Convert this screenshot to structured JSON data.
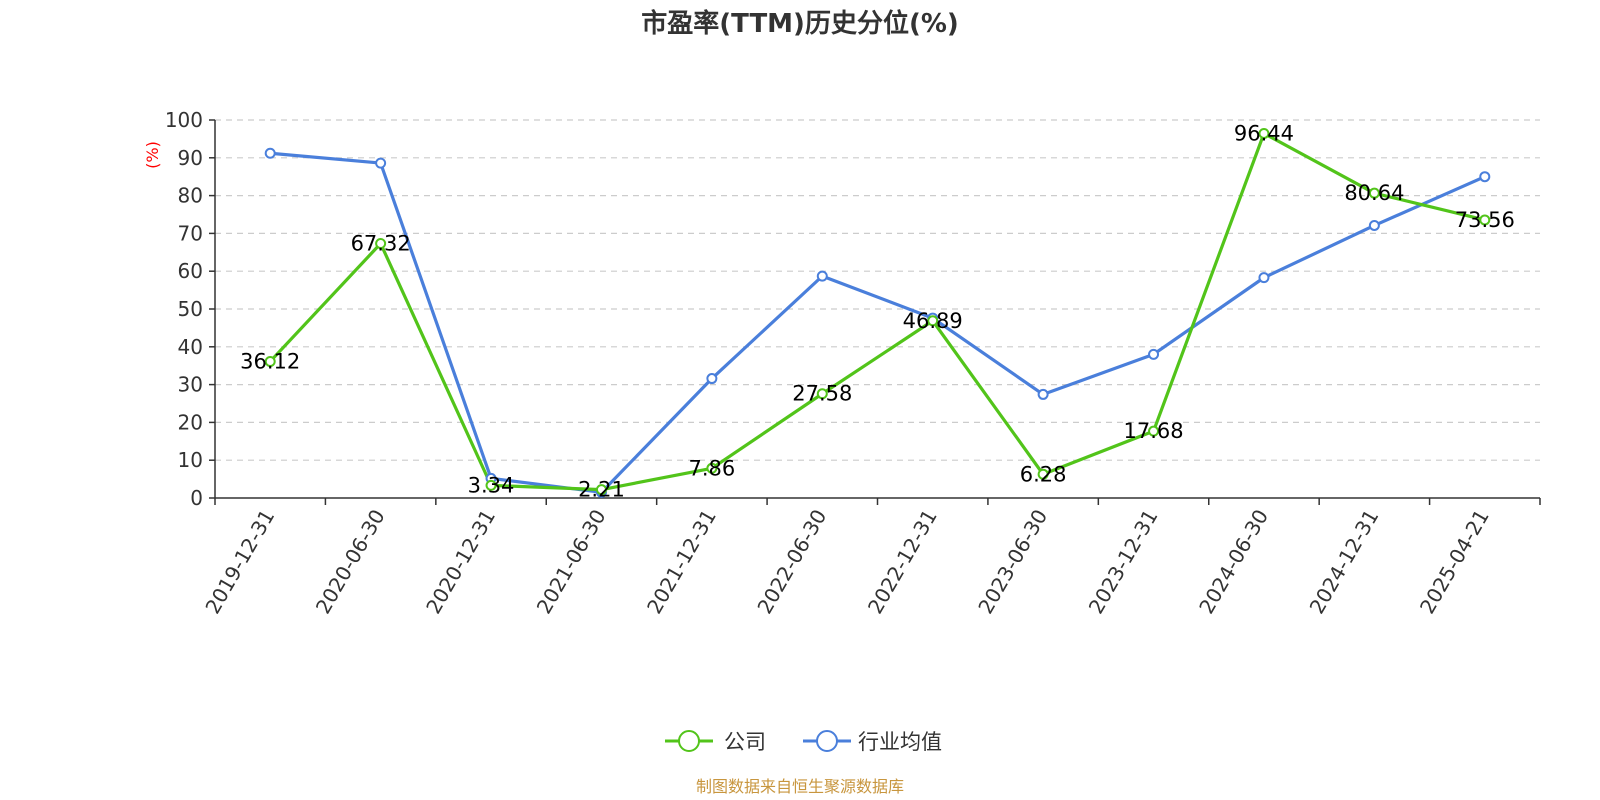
{
  "chart_data": {
    "type": "line",
    "title": "市盈率(TTM)历史分位(%)",
    "ylabel": "(%)",
    "ylim": [
      0,
      100
    ],
    "yticks": [
      0,
      10,
      20,
      30,
      40,
      50,
      60,
      70,
      80,
      90,
      100
    ],
    "categories": [
      "2019-12-31",
      "2020-06-30",
      "2020-12-31",
      "2021-06-30",
      "2021-12-31",
      "2022-06-30",
      "2022-12-31",
      "2023-06-30",
      "2023-12-31",
      "2024-06-30",
      "2024-12-31",
      "2025-04-21"
    ],
    "series": [
      {
        "name": "公司",
        "color": "#52c41a",
        "values": [
          36.12,
          67.32,
          3.34,
          2.21,
          7.86,
          27.58,
          46.89,
          6.28,
          17.68,
          96.44,
          80.64,
          73.56
        ],
        "labels": [
          "36.12",
          "67.32",
          "3.34",
          "2.21",
          "7.86",
          "27.58",
          "46.89",
          "6.28",
          "17.68",
          "96.44",
          "80.64",
          "73.56"
        ]
      },
      {
        "name": "行业均值",
        "color": "#4a7fdb",
        "values": [
          91.2,
          88.6,
          5.2,
          1.5,
          31.6,
          58.7,
          47.6,
          27.4,
          38.0,
          58.3,
          72.1,
          85.0
        ]
      }
    ],
    "grid": true,
    "legend": "bottom-center",
    "unit_color": "#ff0000"
  },
  "footer": {
    "source": "制图数据来自恒生聚源数据库",
    "color": "#c8963e"
  }
}
